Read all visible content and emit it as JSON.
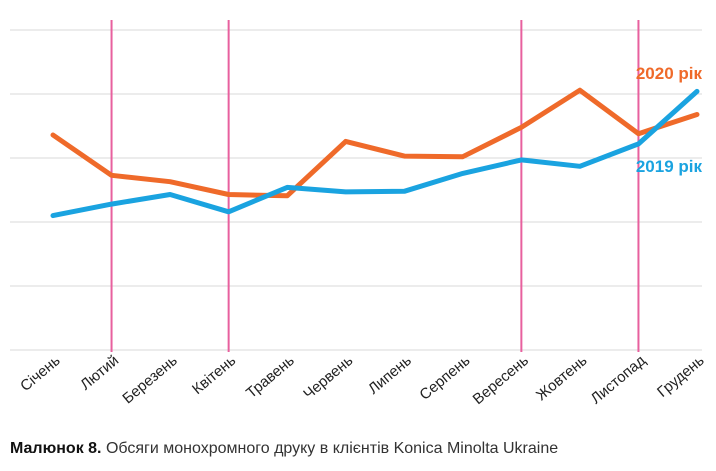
{
  "caption": {
    "label": "Малюнок 8.",
    "text": "Обсяги монохромного друку в клієнтів Konica Minolta Ukraine"
  },
  "colors": {
    "grid": "#d9d9d9",
    "marker": "#e8609e",
    "series_2019": "#1aa3e0",
    "series_2020": "#ef6a2a"
  },
  "chart_data": {
    "type": "line",
    "categories": [
      "Січень",
      "Лютий",
      "Березень",
      "Квітень",
      "Травень",
      "Червень",
      "Липень",
      "Серпень",
      "Вересень",
      "Жовтень",
      "Листопад",
      "Грудень"
    ],
    "ylim": [
      0,
      5
    ],
    "grid": true,
    "highlighted_categories": [
      "Лютий",
      "Квітень",
      "Вересень",
      "Листопад"
    ],
    "series": [
      {
        "name": "2020 рік",
        "color": "#ef6a2a",
        "values": [
          3.36,
          2.73,
          2.63,
          2.43,
          2.41,
          3.26,
          3.03,
          3.02,
          3.48,
          4.06,
          3.38,
          3.68
        ]
      },
      {
        "name": "2019 рік",
        "color": "#1aa3e0",
        "values": [
          2.1,
          2.28,
          2.43,
          2.16,
          2.54,
          2.47,
          2.48,
          2.76,
          2.97,
          2.87,
          3.22,
          4.04
        ]
      }
    ]
  }
}
